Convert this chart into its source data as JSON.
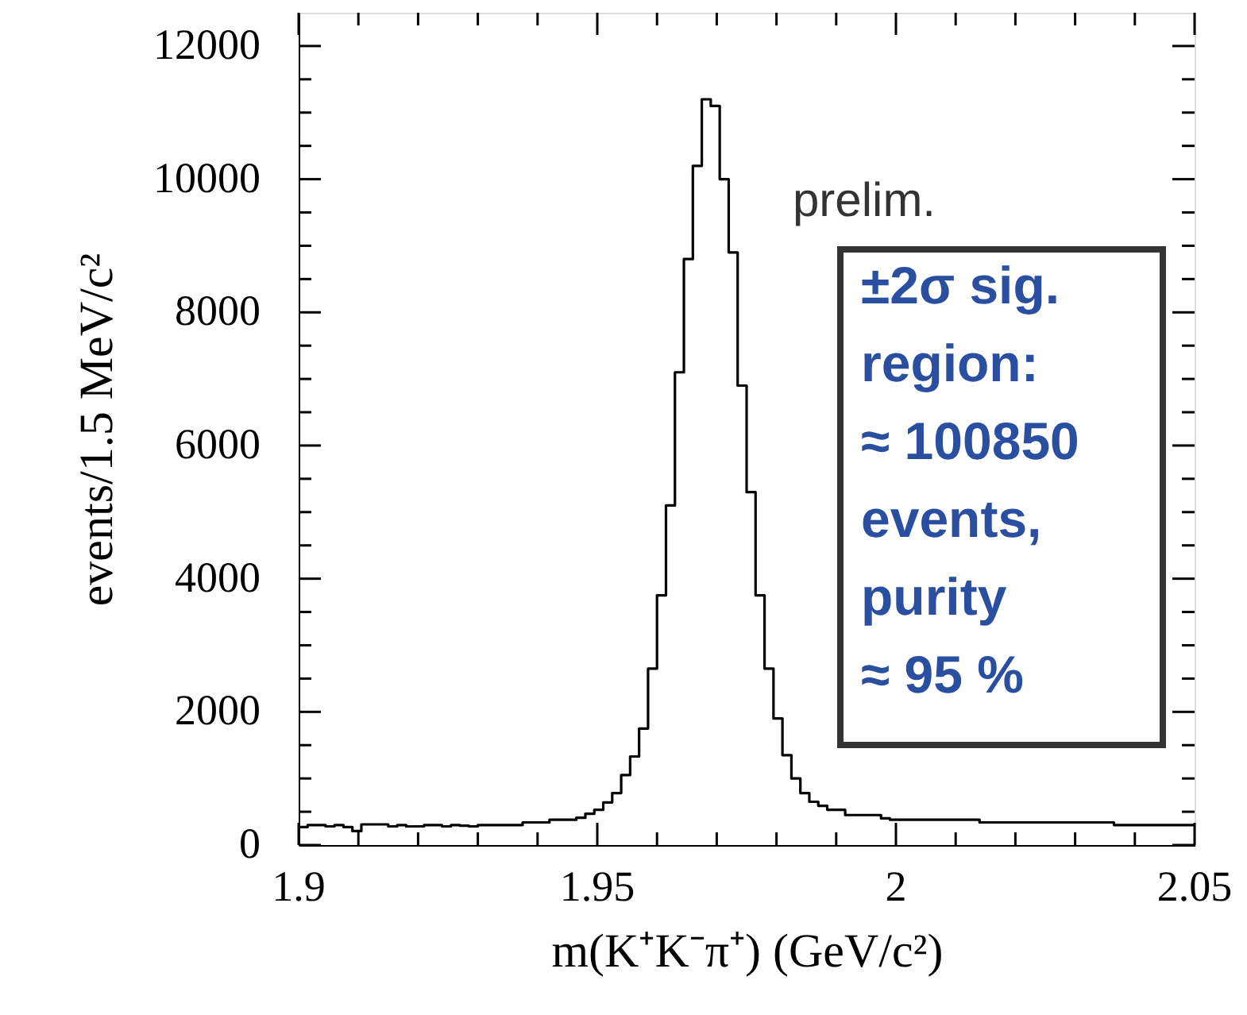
{
  "chart_data": {
    "type": "histogram",
    "xlabel": "m(K⁺K⁻π⁺) (GeV/c²)",
    "ylabel": "events/1.5 MeV/c²",
    "bins": [
      1.9,
      1.9015,
      1.903,
      1.9045,
      1.906,
      1.9075,
      1.909,
      1.9105,
      1.912,
      1.9135,
      1.915,
      1.9165,
      1.918,
      1.9195,
      1.921,
      1.9225,
      1.924,
      1.9255,
      1.927,
      1.9285,
      1.93,
      1.9315,
      1.933,
      1.9345,
      1.936,
      1.9375,
      1.939,
      1.9405,
      1.942,
      1.9435,
      1.945,
      1.9465,
      1.948,
      1.9495,
      1.951,
      1.9525,
      1.954,
      1.9555,
      1.957,
      1.9585,
      1.96,
      1.9615,
      1.963,
      1.9645,
      1.966,
      1.9675,
      1.969,
      1.9705,
      1.972,
      1.9735,
      1.975,
      1.9765,
      1.978,
      1.9795,
      1.981,
      1.9825,
      1.984,
      1.9855,
      1.987,
      1.9885,
      1.99,
      1.9915,
      1.993,
      1.9945,
      1.996,
      1.9975,
      1.999,
      2.0005,
      2.002,
      2.0035,
      2.005,
      2.0065,
      2.008,
      2.0095,
      2.011,
      2.0125,
      2.014,
      2.0155,
      2.017,
      2.0185,
      2.02,
      2.0215,
      2.023,
      2.0245,
      2.026,
      2.0275,
      2.029,
      2.0305,
      2.032,
      2.0335,
      2.035,
      2.0365,
      2.038,
      2.0395,
      2.041,
      2.0425,
      2.044,
      2.0455,
      2.047,
      2.0485,
      2.05
    ],
    "values": [
      270,
      300,
      300,
      280,
      300,
      270,
      210,
      310,
      310,
      310,
      280,
      300,
      280,
      280,
      300,
      300,
      280,
      300,
      290,
      280,
      300,
      300,
      300,
      300,
      300,
      340,
      340,
      340,
      380,
      380,
      380,
      410,
      470,
      530,
      640,
      780,
      1050,
      1330,
      1750,
      2650,
      3750,
      5100,
      7100,
      8800,
      10200,
      11200,
      11100,
      10000,
      8900,
      6900,
      5300,
      3750,
      2650,
      1900,
      1350,
      1000,
      780,
      650,
      590,
      530,
      530,
      450,
      450,
      450,
      450,
      400,
      380,
      380,
      380,
      380,
      380,
      380,
      380,
      380,
      380,
      380,
      340,
      340,
      340,
      340,
      340,
      340,
      340,
      340,
      340,
      340,
      340,
      340,
      340,
      340,
      340,
      300,
      300,
      300,
      300,
      300,
      300,
      300,
      300,
      300
    ],
    "color": "#000000",
    "xlim": [
      1.9,
      2.05
    ],
    "xticks": [
      1.9,
      {
        "value": 1.91,
        "label": null
      },
      {
        "value": 1.92,
        "label": null
      },
      {
        "value": 1.93,
        "label": null
      },
      {
        "value": 1.94,
        "label": null
      },
      1.95,
      {
        "value": 1.96,
        "label": null
      },
      {
        "value": 1.97,
        "label": null
      },
      {
        "value": 1.98,
        "label": null
      },
      {
        "value": 1.99,
        "label": null
      },
      2,
      {
        "value": 2.01,
        "label": null
      },
      {
        "value": 2.02,
        "label": null
      },
      {
        "value": 2.03,
        "label": null
      },
      {
        "value": 2.04,
        "label": null
      },
      2.05
    ],
    "ylim": [
      0,
      12500
    ],
    "yticks": [
      0,
      {
        "value": 500,
        "label": null
      },
      {
        "value": 1000,
        "label": null
      },
      {
        "value": 1500,
        "label": null
      },
      2000,
      {
        "value": 2500,
        "label": null
      },
      {
        "value": 3000,
        "label": null
      },
      {
        "value": 3500,
        "label": null
      },
      4000,
      {
        "value": 4500,
        "label": null
      },
      {
        "value": 5000,
        "label": null
      },
      {
        "value": 5500,
        "label": null
      },
      6000,
      {
        "value": 6500,
        "label": null
      },
      {
        "value": 7000,
        "label": null
      },
      {
        "value": 7500,
        "label": null
      },
      8000,
      {
        "value": 8500,
        "label": null
      },
      {
        "value": 9000,
        "label": null
      },
      {
        "value": 9500,
        "label": null
      },
      10000,
      {
        "value": 10500,
        "label": null
      },
      {
        "value": 11000,
        "label": null
      },
      {
        "value": 11500,
        "label": null
      },
      12000
    ],
    "grid": false,
    "annotations": [
      "prelim.",
      "±2σ sig.\nregion:\n≈ 100850\nevents,\npurity\n≈ 95 %"
    ]
  }
}
